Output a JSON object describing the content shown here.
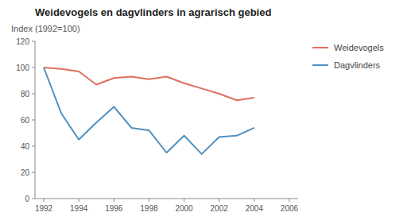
{
  "chart_data": {
    "type": "line",
    "title": "Weidevogels en dagvlinders in agrarisch gebied",
    "ylabel": "Index (1992=100)",
    "x": [
      1992,
      1993,
      1994,
      1995,
      1996,
      1997,
      1998,
      1999,
      2000,
      2001,
      2002,
      2003,
      2004
    ],
    "series": [
      {
        "name": "Weidevogels",
        "color": "#e07060",
        "values": [
          100,
          99,
          97,
          87,
          92,
          93,
          91,
          93,
          88,
          84,
          80,
          75,
          77
        ]
      },
      {
        "name": "Dagvlinders",
        "color": "#5090c0",
        "values": [
          100,
          65,
          45,
          58,
          70,
          54,
          52,
          35,
          48,
          34,
          47,
          48,
          54
        ]
      }
    ],
    "xlim": [
      1991.5,
      2006.5
    ],
    "ylim": [
      0,
      120
    ],
    "xticks": [
      1992,
      1994,
      1996,
      1998,
      2000,
      2002,
      2004,
      2006
    ],
    "yticks": [
      0,
      20,
      40,
      60,
      80,
      100,
      120
    ],
    "grid": false,
    "legend": "right"
  }
}
